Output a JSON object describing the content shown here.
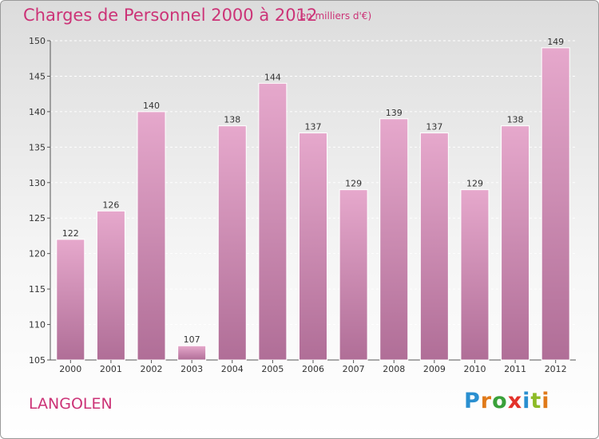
{
  "header": {
    "title": "Charges de Personnel 2000 à 2012",
    "unit_note": "(en milliers d'€)"
  },
  "footer": {
    "commune": "LANGOLEN",
    "brand_letters": [
      {
        "char": "P",
        "color": "#2a8fd0"
      },
      {
        "char": "r",
        "color": "#e07a1a"
      },
      {
        "char": "o",
        "color": "#3aa13a"
      },
      {
        "char": "x",
        "color": "#e3322a"
      },
      {
        "char": "i",
        "color": "#2a8fd0"
      },
      {
        "char": "t",
        "color": "#8dbb27"
      },
      {
        "char": "i",
        "color": "#e07a1a"
      }
    ]
  },
  "colors": {
    "bar_light": "#e6a8cc",
    "bar_dark": "#b06e97",
    "text_accent": "#cc3377"
  },
  "chart_data": {
    "type": "bar",
    "categories": [
      "2000",
      "2001",
      "2002",
      "2003",
      "2004",
      "2005",
      "2006",
      "2007",
      "2008",
      "2009",
      "2010",
      "2011",
      "2012"
    ],
    "values": [
      122,
      126,
      140,
      107,
      138,
      144,
      137,
      129,
      139,
      137,
      129,
      138,
      149
    ],
    "title": "Charges de Personnel 2000 à 2012",
    "subtitle": "(en milliers d'€)",
    "ylim": [
      105,
      150
    ],
    "yticks": [
      105,
      110,
      115,
      120,
      125,
      130,
      135,
      140,
      145,
      150
    ],
    "grid": true,
    "data_labels": true
  }
}
